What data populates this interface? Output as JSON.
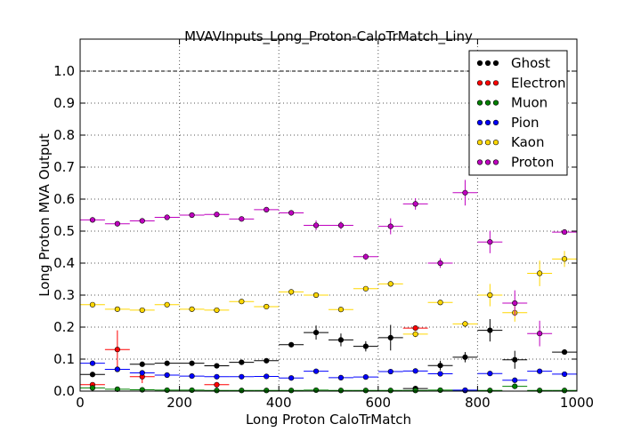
{
  "chart_data": {
    "type": "scatter",
    "title": "MVAVInputs_Long_Proton-CaloTrMatch_Liny",
    "xlabel": "Long Proton CaloTrMatch",
    "ylabel": "Long Proton MVA Output",
    "xlim": [
      0,
      1000
    ],
    "ylim": [
      0,
      1.1
    ],
    "xticks": [
      "0",
      "200",
      "400",
      "600",
      "800",
      "1000"
    ],
    "yticks": [
      "0.0",
      "0.1",
      "0.2",
      "0.3",
      "0.4",
      "0.5",
      "0.6",
      "0.7",
      "0.8",
      "0.9",
      "1.0"
    ],
    "grid": true,
    "reference_line": 1.0,
    "legend_position": "top-right",
    "bin_half_width": 25,
    "series": [
      {
        "name": "Ghost",
        "color": "#000000",
        "points": [
          [
            25,
            0.052,
            0.005
          ],
          [
            75,
            0.068,
            0.005
          ],
          [
            125,
            0.084,
            0.004
          ],
          [
            175,
            0.087,
            0.004
          ],
          [
            225,
            0.087,
            0.004
          ],
          [
            275,
            0.079,
            0.004
          ],
          [
            325,
            0.09,
            0.005
          ],
          [
            375,
            0.095,
            0.006
          ],
          [
            425,
            0.145,
            0.008
          ],
          [
            475,
            0.183,
            0.022
          ],
          [
            525,
            0.16,
            0.02
          ],
          [
            575,
            0.14,
            0.016
          ],
          [
            625,
            0.167,
            0.04
          ],
          [
            675,
            0.008,
            0.005
          ],
          [
            725,
            0.08,
            0.015
          ],
          [
            775,
            0.106,
            0.016
          ],
          [
            825,
            0.19,
            0.035
          ],
          [
            875,
            0.098,
            0.028
          ],
          [
            975,
            0.122,
            0.006
          ]
        ]
      },
      {
        "name": "Electron",
        "color": "#ff0000",
        "points": [
          [
            25,
            0.02,
            0.004
          ],
          [
            75,
            0.13,
            0.06
          ],
          [
            125,
            0.045,
            0.02
          ],
          [
            275,
            0.02,
            0.008
          ],
          [
            675,
            0.197,
            0.008
          ]
        ]
      },
      {
        "name": "Muon",
        "color": "#008000",
        "points": [
          [
            25,
            0.01,
            0.003
          ],
          [
            75,
            0.006,
            0.002
          ],
          [
            125,
            0.004,
            0.002
          ],
          [
            175,
            0.003,
            0.002
          ],
          [
            225,
            0.003,
            0.002
          ],
          [
            275,
            0.002,
            0.002
          ],
          [
            325,
            0.002,
            0.002
          ],
          [
            375,
            0.002,
            0.002
          ],
          [
            425,
            0.002,
            0.002
          ],
          [
            475,
            0.003,
            0.002
          ],
          [
            525,
            0.002,
            0.002
          ],
          [
            575,
            0.002,
            0.002
          ],
          [
            625,
            0.002,
            0.002
          ],
          [
            675,
            0.002,
            0.002
          ],
          [
            725,
            0.003,
            0.002
          ],
          [
            775,
            0.002,
            0.002
          ],
          [
            825,
            0.002,
            0.002
          ],
          [
            875,
            0.015,
            0.006
          ],
          [
            925,
            0.002,
            0.002
          ],
          [
            975,
            0.002,
            0.002
          ]
        ]
      },
      {
        "name": "Pion",
        "color": "#0000ff",
        "points": [
          [
            25,
            0.087,
            0.004
          ],
          [
            75,
            0.068,
            0.004
          ],
          [
            125,
            0.057,
            0.003
          ],
          [
            175,
            0.05,
            0.003
          ],
          [
            225,
            0.047,
            0.003
          ],
          [
            275,
            0.045,
            0.003
          ],
          [
            325,
            0.045,
            0.003
          ],
          [
            375,
            0.046,
            0.003
          ],
          [
            425,
            0.041,
            0.003
          ],
          [
            475,
            0.062,
            0.004
          ],
          [
            525,
            0.042,
            0.003
          ],
          [
            575,
            0.044,
            0.003
          ],
          [
            625,
            0.061,
            0.004
          ],
          [
            675,
            0.063,
            0.004
          ],
          [
            725,
            0.054,
            0.004
          ],
          [
            775,
            0.003,
            0.003
          ],
          [
            825,
            0.055,
            0.004
          ],
          [
            875,
            0.034,
            0.004
          ],
          [
            925,
            0.062,
            0.005
          ],
          [
            975,
            0.053,
            0.004
          ]
        ]
      },
      {
        "name": "Kaon",
        "color": "#ffd700",
        "points": [
          [
            25,
            0.27,
            0.006
          ],
          [
            75,
            0.256,
            0.006
          ],
          [
            125,
            0.253,
            0.005
          ],
          [
            175,
            0.27,
            0.006
          ],
          [
            225,
            0.256,
            0.005
          ],
          [
            275,
            0.253,
            0.005
          ],
          [
            325,
            0.28,
            0.006
          ],
          [
            375,
            0.264,
            0.006
          ],
          [
            425,
            0.31,
            0.006
          ],
          [
            475,
            0.3,
            0.006
          ],
          [
            525,
            0.255,
            0.006
          ],
          [
            575,
            0.32,
            0.007
          ],
          [
            625,
            0.335,
            0.007
          ],
          [
            675,
            0.178,
            0.01
          ],
          [
            725,
            0.277,
            0.008
          ],
          [
            775,
            0.21,
            0.008
          ],
          [
            825,
            0.3,
            0.035
          ],
          [
            875,
            0.245,
            0.028
          ],
          [
            925,
            0.368,
            0.04
          ],
          [
            975,
            0.413,
            0.025
          ]
        ]
      },
      {
        "name": "Proton",
        "color": "#bf00bf",
        "points": [
          [
            25,
            0.535,
            0.005
          ],
          [
            75,
            0.523,
            0.005
          ],
          [
            125,
            0.532,
            0.005
          ],
          [
            175,
            0.543,
            0.005
          ],
          [
            225,
            0.55,
            0.005
          ],
          [
            275,
            0.552,
            0.005
          ],
          [
            325,
            0.538,
            0.005
          ],
          [
            375,
            0.567,
            0.005
          ],
          [
            425,
            0.557,
            0.006
          ],
          [
            475,
            0.518,
            0.015
          ],
          [
            525,
            0.518,
            0.012
          ],
          [
            575,
            0.42,
            0.01
          ],
          [
            625,
            0.515,
            0.025
          ],
          [
            675,
            0.585,
            0.018
          ],
          [
            725,
            0.4,
            0.015
          ],
          [
            775,
            0.62,
            0.04
          ],
          [
            825,
            0.466,
            0.035
          ],
          [
            875,
            0.275,
            0.04
          ],
          [
            925,
            0.18,
            0.04
          ],
          [
            975,
            0.497,
            0.006
          ]
        ]
      }
    ]
  }
}
